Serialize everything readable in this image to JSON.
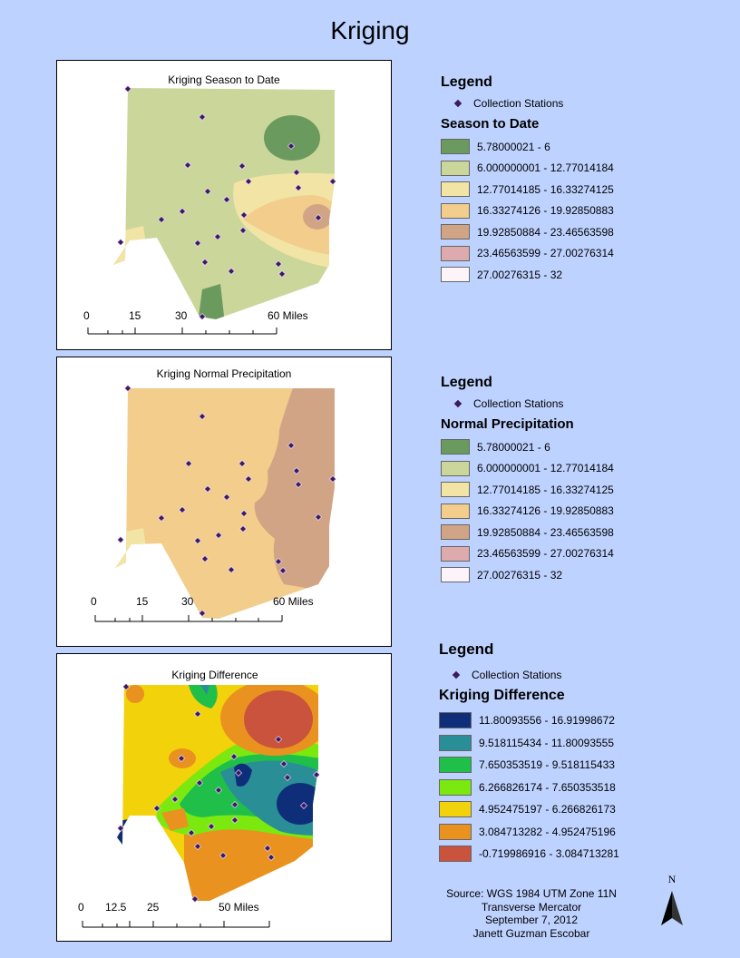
{
  "title": "Kriging",
  "maps": [
    {
      "title": "Kriging Season to Date",
      "scale_labels": [
        "0",
        "15",
        "30",
        "60 Miles"
      ],
      "legend": {
        "heading": "Legend",
        "stations_label": "Collection Stations",
        "subtitle": "Season to Date",
        "classes": [
          {
            "label": "5.78000021 - 6",
            "color": "#6b9a5e"
          },
          {
            "label": "6.000000001 - 12.77014184",
            "color": "#cbd69a"
          },
          {
            "label": "12.77014185 - 16.33274125",
            "color": "#f2e4a4"
          },
          {
            "label": "16.33274126 - 19.92850883",
            "color": "#f2cd8c"
          },
          {
            "label": "19.92850884 - 23.46563598",
            "color": "#d2a486"
          },
          {
            "label": "23.46563599 - 27.00276314",
            "color": "#ddaaae"
          },
          {
            "label": "27.00276315 - 32",
            "color": "#fdf4fa"
          }
        ]
      }
    },
    {
      "title": "Kriging Normal Precipitation",
      "scale_labels": [
        "0",
        "15",
        "30",
        "60 Miles"
      ],
      "legend": {
        "heading": "Legend",
        "stations_label": "Collection Stations",
        "subtitle": "Normal Precipitation",
        "classes": [
          {
            "label": "5.78000021 - 6",
            "color": "#6b9a5e"
          },
          {
            "label": "6.000000001 - 12.77014184",
            "color": "#cbd69a"
          },
          {
            "label": "12.77014185 - 16.33274125",
            "color": "#f2e4a4"
          },
          {
            "label": "16.33274126 - 19.92850883",
            "color": "#f2cd8c"
          },
          {
            "label": "19.92850884 - 23.46563598",
            "color": "#d2a486"
          },
          {
            "label": "23.46563599 - 27.00276314",
            "color": "#ddaaae"
          },
          {
            "label": "27.00276315 - 32",
            "color": "#fdf4fa"
          }
        ]
      }
    },
    {
      "title": "Kriging Difference",
      "scale_labels": [
        "0",
        "12.5",
        "25",
        "50 Miles"
      ],
      "legend": {
        "heading": "Legend",
        "stations_label": "Collection Stations",
        "subtitle": "Kriging Difference",
        "classes": [
          {
            "label": "11.80093556 - 16.91998672",
            "color": "#0f2e7a"
          },
          {
            "label": "9.518115434 - 11.80093555",
            "color": "#2a8e96"
          },
          {
            "label": "7.650353519 - 9.518115433",
            "color": "#1fbf4a"
          },
          {
            "label": "6.266826174 - 7.650353518",
            "color": "#7be80f"
          },
          {
            "label": "4.952475197 - 6.266826173",
            "color": "#f2d20a"
          },
          {
            "label": "3.084713282 - 4.952475196",
            "color": "#ea9220"
          },
          {
            "label": "-0.719986916 - 3.084713281",
            "color": "#c9533c"
          }
        ]
      }
    }
  ],
  "footer": {
    "line1": "Source: WGS 1984 UTM Zone 11N",
    "line2": "Transverse Mercator",
    "line3": "September 7, 2012",
    "line4": "Janett Guzman Escobar"
  },
  "north_label": "N"
}
